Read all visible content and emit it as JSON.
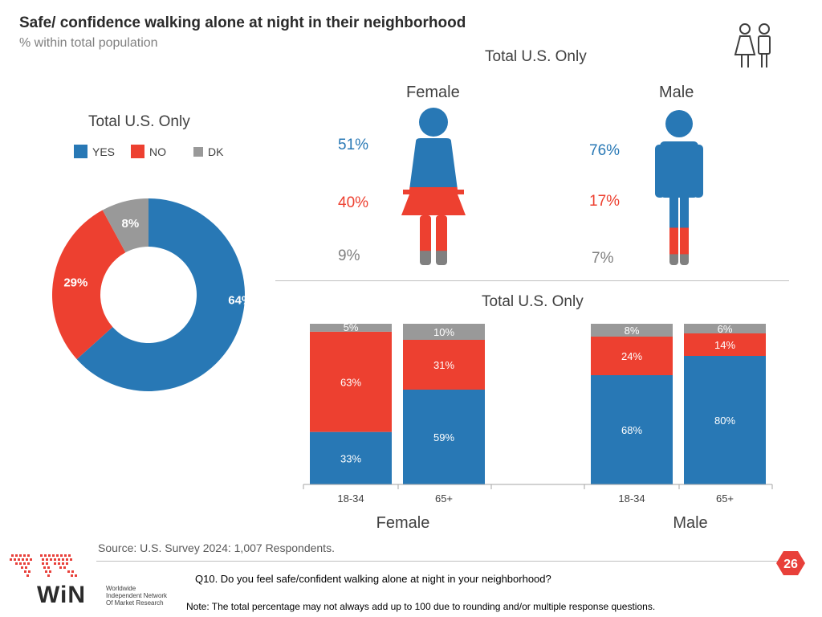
{
  "header": {
    "title": "Safe/ confidence walking alone at night in their neighborhood",
    "subtitle": "% within total population"
  },
  "colors": {
    "yes": "#2878b5",
    "no": "#ed4030",
    "dk": "#999999",
    "accent": "#e8403a"
  },
  "icons": {
    "top_right": "couple-icon",
    "female": "female-figure-icon",
    "male": "male-figure-icon"
  },
  "chart_data": [
    {
      "type": "pie",
      "title": "Total U.S. Only",
      "legend": [
        "YES",
        "NO",
        "DK"
      ],
      "legend_position": "top",
      "categories": [
        "YES",
        "NO",
        "DK"
      ],
      "values": [
        64,
        29,
        8
      ],
      "labels": [
        "64%",
        "29%",
        "8%"
      ]
    },
    {
      "type": "bar",
      "title": "Total U.S. Only",
      "categories": [
        "Female",
        "Male"
      ],
      "series": [
        {
          "name": "YES",
          "values": [
            51,
            76
          ],
          "labels": [
            "51%",
            "76%"
          ]
        },
        {
          "name": "NO",
          "values": [
            40,
            17
          ],
          "labels": [
            "40%",
            "17%"
          ]
        },
        {
          "name": "DK",
          "values": [
            9,
            7
          ],
          "labels": [
            "9%",
            "7%"
          ]
        }
      ]
    },
    {
      "type": "bar",
      "stacked": true,
      "title": "Total U.S. Only",
      "groups": [
        "Female",
        "Male"
      ],
      "categories": [
        "18-34",
        "65+",
        "18-34",
        "65+"
      ],
      "series": [
        {
          "name": "YES",
          "values": [
            33,
            59,
            68,
            80
          ],
          "labels": [
            "33%",
            "59%",
            "68%",
            "80%"
          ]
        },
        {
          "name": "NO",
          "values": [
            63,
            31,
            24,
            14
          ],
          "labels": [
            "63%",
            "31%",
            "24%",
            "14%"
          ]
        },
        {
          "name": "DK",
          "values": [
            5,
            10,
            8,
            6
          ],
          "labels": [
            "5%",
            "10%",
            "8%",
            "6%"
          ]
        }
      ]
    }
  ],
  "footer": {
    "source": "Source: U.S. Survey 2024: 1,007 Respondents.",
    "question": "Q10. Do you feel safe/confident walking alone at night in your neighborhood?",
    "note": "Note: The total percentage may not always add up to 100 due to rounding and/or multiple response questions.",
    "page_number": "26",
    "logo_name": "WiN",
    "logo_tagline": [
      "Worldwide",
      "Independent Network",
      "Of Market Research"
    ]
  }
}
